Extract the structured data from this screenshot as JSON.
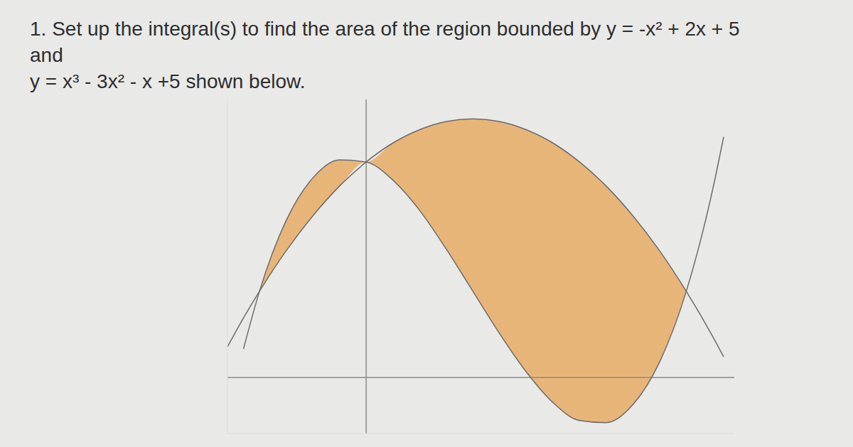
{
  "chart_data": {
    "type": "line",
    "title_lines": [
      "1. Set up the integral(s) to find the area of the region bounded by y = -x² + 2x + 5",
      "and",
      "y = x³ - 3x² - x +5 shown below."
    ],
    "x": [
      -1.3,
      -1.15,
      -1,
      -0.75,
      -0.5,
      -0.25,
      0,
      0.25,
      0.5,
      0.75,
      1,
      1.25,
      1.5,
      1.75,
      2,
      2.25,
      2.5,
      2.75,
      3,
      3.25,
      3.35
    ],
    "series": [
      {
        "name": "y = -x² + 2x + 5",
        "color": "#6b6b6b",
        "values": [
          0.71,
          1.38,
          2,
          2.94,
          3.75,
          4.44,
          5,
          5.44,
          5.75,
          5.94,
          6,
          5.94,
          5.75,
          5.44,
          5,
          4.44,
          3.75,
          2.94,
          2,
          0.94,
          0.48
        ]
      },
      {
        "name": "y = x³ - 3x² - x +5",
        "color": "#6b6b6b",
        "values": [
          null,
          0.66,
          2,
          3.64,
          4.63,
          5.05,
          5,
          4.58,
          3.88,
          2.98,
          2,
          1.02,
          0.13,
          -0.58,
          -1,
          -1.05,
          -0.63,
          0.36,
          2,
          4.39,
          5.58
        ]
      }
    ],
    "fill_between": {
      "x": [
        -1,
        3
      ],
      "color": "#e8b273"
    },
    "xlim": [
      -1.3,
      3.45
    ],
    "ylim": [
      -1.3,
      6.45
    ],
    "tick_labels": false,
    "grid": false
  }
}
